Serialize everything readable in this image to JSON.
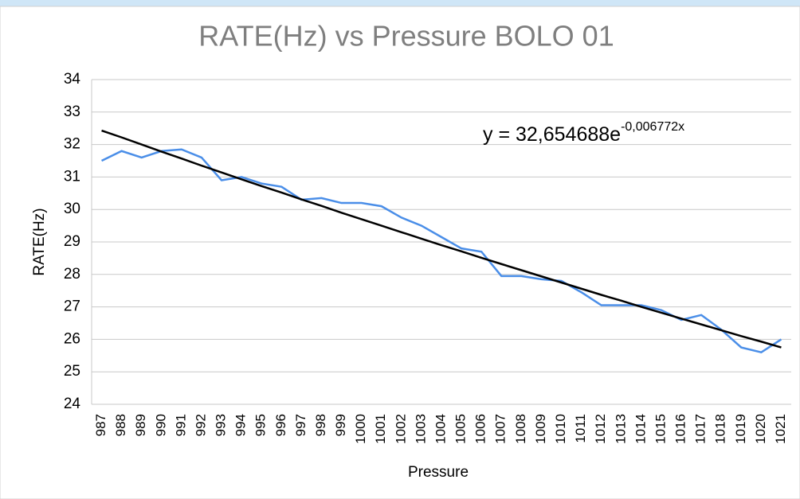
{
  "chart_data": {
    "type": "line",
    "title": "RATE(Hz) vs Pressure BOLO 01",
    "x_label": "Pressure",
    "y_label": "RATE(Hz)",
    "annotation": {
      "base": "y = 32,654688e",
      "exponent": "-0,006772x"
    },
    "categories": [
      "987",
      "988",
      "989",
      "990",
      "991",
      "992",
      "993",
      "994",
      "995",
      "996",
      "997",
      "998",
      "999",
      "1000",
      "1001",
      "1002",
      "1003",
      "1004",
      "1005",
      "1006",
      "1007",
      "1008",
      "1009",
      "1010",
      "1011",
      "1012",
      "1013",
      "1014",
      "1015",
      "1016",
      "1017",
      "1018",
      "1019",
      "1020",
      "1021"
    ],
    "series": [
      {
        "color": "#4a8ee8",
        "values": [
          31.5,
          31.8,
          31.6,
          31.8,
          31.85,
          31.6,
          30.9,
          31.0,
          30.8,
          30.7,
          30.3,
          30.35,
          30.2,
          30.2,
          30.1,
          29.75,
          29.5,
          29.15,
          28.8,
          28.7,
          27.95,
          27.95,
          27.85,
          27.8,
          27.45,
          27.05,
          27.05,
          27.05,
          26.9,
          26.6,
          26.75,
          26.3,
          25.75,
          25.6,
          26.0
        ]
      },
      {
        "color": "#000000",
        "values": [
          32.43,
          32.22,
          32.0,
          31.78,
          31.57,
          31.35,
          31.14,
          30.93,
          30.72,
          30.52,
          30.31,
          30.11,
          29.9,
          29.7,
          29.5,
          29.3,
          29.1,
          28.9,
          28.71,
          28.51,
          28.32,
          28.13,
          27.94,
          27.75,
          27.56,
          27.37,
          27.19,
          27.0,
          26.82,
          26.64,
          26.46,
          26.28,
          26.1,
          25.93,
          25.75
        ]
      }
    ],
    "ylim": [
      24,
      34
    ],
    "yticks": [
      24,
      25,
      26,
      27,
      28,
      29,
      30,
      31,
      32,
      33,
      34
    ],
    "grid": true
  }
}
